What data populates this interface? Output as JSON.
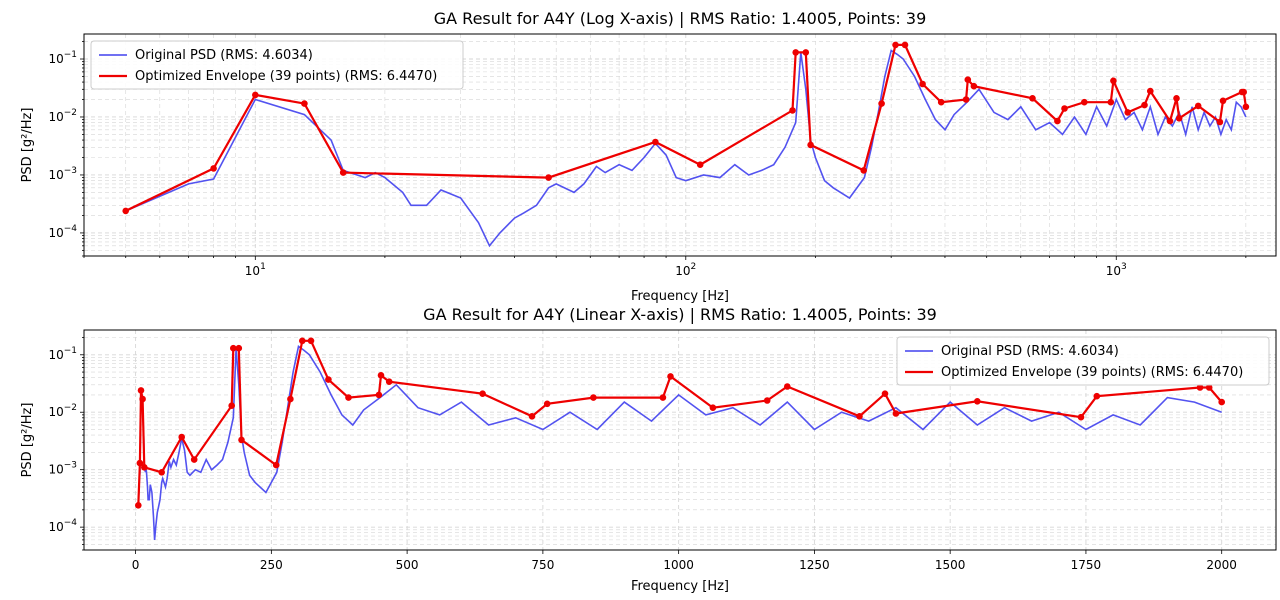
{
  "colors": {
    "original": "#4040ee",
    "envelope": "#ee0000",
    "grid": "#d6d6d6"
  },
  "chart_data": [
    {
      "type": "line",
      "title": "GA Result for A4Y (Log X-axis) | RMS Ratio: 1.4005, Points: 39",
      "xlabel": "Frequency [Hz]",
      "ylabel": "PSD [g²/Hz]",
      "xscale": "log",
      "yscale": "log",
      "xlim": [
        4,
        2350
      ],
      "ylim": [
        4e-05,
        0.27
      ],
      "grid": true,
      "legend": "upper-left",
      "xticks": [
        {
          "value": 10,
          "base": "10",
          "exp": "1"
        },
        {
          "value": 100,
          "base": "10",
          "exp": "2"
        },
        {
          "value": 1000,
          "base": "10",
          "exp": "3"
        }
      ],
      "yticks": [
        {
          "value": 0.0001,
          "base": "10",
          "exp": "−4"
        },
        {
          "value": 0.001,
          "base": "10",
          "exp": "−3"
        },
        {
          "value": 0.01,
          "base": "10",
          "exp": "−2"
        },
        {
          "value": 0.1,
          "base": "10",
          "exp": "−1"
        }
      ],
      "series_ref": [
        "original",
        "envelope"
      ]
    },
    {
      "type": "line",
      "title": "GA Result for A4Y (Linear X-axis) | RMS Ratio: 1.4005, Points: 39",
      "xlabel": "Frequency [Hz]",
      "ylabel": "PSD [g²/Hz]",
      "xscale": "linear",
      "yscale": "log",
      "xlim": [
        -95,
        2100
      ],
      "ylim": [
        4e-05,
        0.27
      ],
      "grid": true,
      "legend": "upper-right",
      "xticks": [
        {
          "value": 0,
          "label": "0"
        },
        {
          "value": 250,
          "label": "250"
        },
        {
          "value": 500,
          "label": "500"
        },
        {
          "value": 750,
          "label": "750"
        },
        {
          "value": 1000,
          "label": "1000"
        },
        {
          "value": 1250,
          "label": "1250"
        },
        {
          "value": 1500,
          "label": "1500"
        },
        {
          "value": 1750,
          "label": "1750"
        },
        {
          "value": 2000,
          "label": "2000"
        }
      ],
      "yticks": [
        {
          "value": 0.0001,
          "base": "10",
          "exp": "−4"
        },
        {
          "value": 0.001,
          "base": "10",
          "exp": "−3"
        },
        {
          "value": 0.01,
          "base": "10",
          "exp": "−2"
        },
        {
          "value": 0.1,
          "base": "10",
          "exp": "−1"
        }
      ],
      "series_ref": [
        "original",
        "envelope"
      ]
    }
  ],
  "series": {
    "original": {
      "name": "Original PSD (RMS: 4.6034)",
      "x": [
        5,
        7,
        8,
        10,
        13,
        15,
        16,
        18,
        19,
        20,
        22,
        23,
        25,
        27,
        30,
        33,
        35,
        37,
        40,
        42,
        45,
        48,
        50,
        55,
        58,
        62,
        65,
        70,
        75,
        80,
        85,
        90,
        95,
        100,
        110,
        120,
        130,
        140,
        150,
        160,
        170,
        180,
        185,
        190,
        195,
        200,
        210,
        220,
        240,
        260,
        270,
        280,
        290,
        300,
        310,
        320,
        340,
        360,
        380,
        400,
        420,
        450,
        480,
        520,
        560,
        600,
        650,
        700,
        750,
        800,
        850,
        900,
        950,
        1000,
        1050,
        1100,
        1150,
        1200,
        1250,
        1300,
        1350,
        1400,
        1450,
        1500,
        1550,
        1600,
        1650,
        1700,
        1750,
        1800,
        1850,
        1900,
        1950,
        2000
      ],
      "values": [
        0.00024,
        0.0007,
        0.00085,
        0.02,
        0.011,
        0.004,
        0.0012,
        0.0009,
        0.0011,
        0.0009,
        0.0005,
        0.0003,
        0.0003,
        0.00055,
        0.0004,
        0.00015,
        6e-05,
        0.0001,
        0.00018,
        0.00022,
        0.0003,
        0.0006,
        0.0007,
        0.0005,
        0.0007,
        0.0014,
        0.0011,
        0.0015,
        0.0012,
        0.002,
        0.0035,
        0.0022,
        0.0009,
        0.0008,
        0.001,
        0.0009,
        0.0015,
        0.001,
        0.0012,
        0.0015,
        0.003,
        0.008,
        0.13,
        0.03,
        0.004,
        0.002,
        0.0008,
        0.0006,
        0.0004,
        0.0009,
        0.003,
        0.012,
        0.05,
        0.14,
        0.12,
        0.1,
        0.05,
        0.02,
        0.009,
        0.006,
        0.011,
        0.018,
        0.03,
        0.012,
        0.009,
        0.015,
        0.006,
        0.008,
        0.005,
        0.01,
        0.005,
        0.015,
        0.007,
        0.02,
        0.009,
        0.012,
        0.006,
        0.015,
        0.005,
        0.01,
        0.007,
        0.012,
        0.005,
        0.015,
        0.006,
        0.012,
        0.007,
        0.01,
        0.005,
        0.009,
        0.006,
        0.018,
        0.015,
        0.01
      ]
    },
    "envelope": {
      "name": "Optimized Envelope (39 points) (RMS: 6.4470)",
      "x": [
        5,
        8,
        10,
        13,
        16,
        48,
        85,
        108,
        177,
        180,
        190,
        195,
        259,
        285,
        307,
        323,
        355,
        392,
        448,
        452,
        467,
        639,
        730,
        758,
        843,
        971,
        985,
        1063,
        1163,
        1200,
        1333,
        1380,
        1400,
        1550,
        1741,
        1770,
        1960,
        1977,
        2000
      ],
      "values": [
        0.00024,
        0.0013,
        0.024,
        0.017,
        0.0011,
        0.0009,
        0.0037,
        0.0015,
        0.013,
        0.13,
        0.13,
        0.0033,
        0.0012,
        0.017,
        0.175,
        0.175,
        0.037,
        0.018,
        0.02,
        0.044,
        0.034,
        0.021,
        0.0085,
        0.014,
        0.018,
        0.018,
        0.042,
        0.012,
        0.016,
        0.028,
        0.0085,
        0.021,
        0.0095,
        0.0155,
        0.0082,
        0.019,
        0.027,
        0.027,
        0.015
      ]
    }
  }
}
